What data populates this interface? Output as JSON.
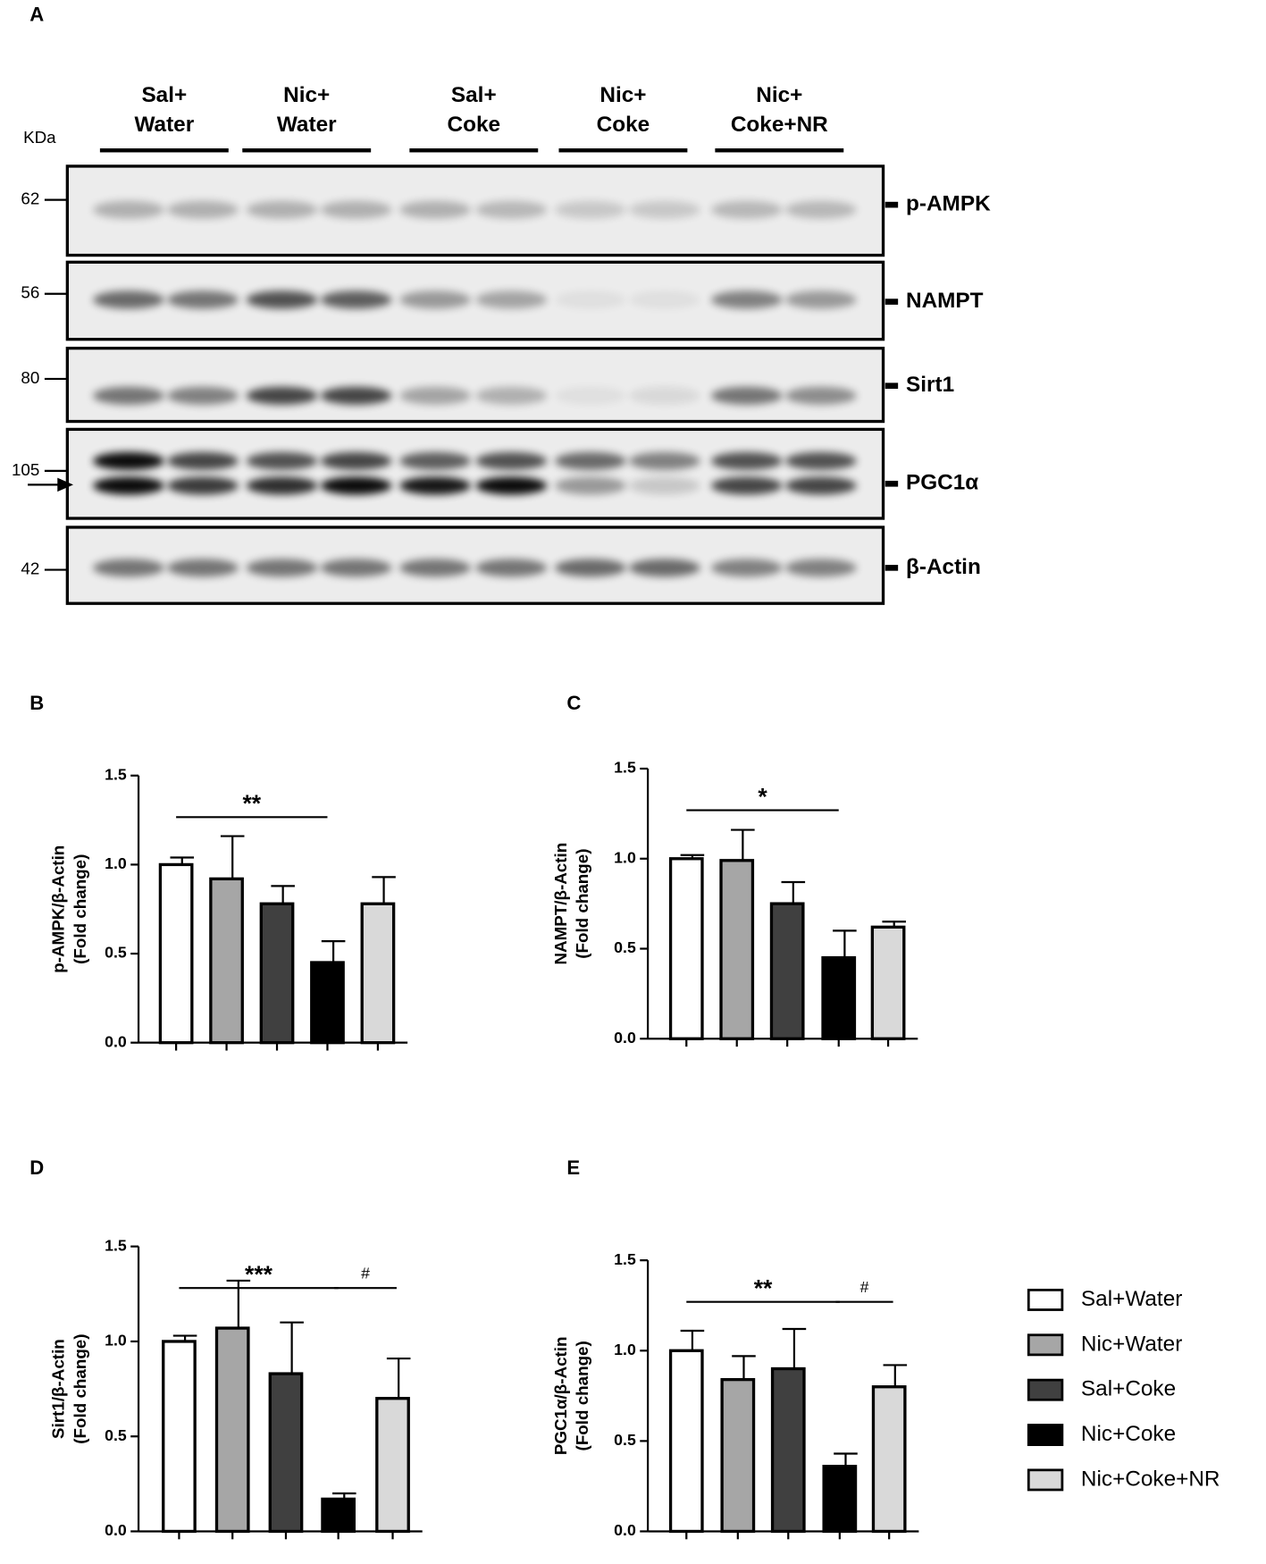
{
  "blot": {
    "panel": "A",
    "kda_label": "KDa",
    "groups": [
      [
        "Sal+",
        "Water"
      ],
      [
        "Nic+",
        "Water"
      ],
      [
        "Sal+",
        "Coke"
      ],
      [
        "Nic+",
        "Coke"
      ],
      [
        "Nic+",
        "Coke+NR"
      ]
    ],
    "markers": [
      "62",
      "56",
      "80",
      "105",
      "42"
    ],
    "proteins": [
      "p-AMPK",
      "NAMPT",
      "Sirt1",
      "PGC1α",
      "β-Actin"
    ]
  },
  "chart_data": [
    {
      "type": "bar",
      "panel": "B",
      "y_label": [
        "p-AMPK/β-Actin",
        "(Fold change)"
      ],
      "values": [
        1.0,
        0.92,
        0.78,
        0.45,
        0.78
      ],
      "errors": [
        0.04,
        0.24,
        0.1,
        0.12,
        0.15
      ],
      "colors": [
        "#ffffff",
        "#a6a6a6",
        "#404040",
        "#000000",
        "#d9d9d9"
      ],
      "ylim": [
        0,
        1.5
      ],
      "yticks": [
        {
          "value": 0,
          "label": "0.0"
        },
        {
          "value": 0.5,
          "label": "0.5"
        },
        {
          "value": 1,
          "label": "1.0"
        },
        {
          "value": 1.5,
          "label": "1.5"
        }
      ],
      "annotations": [
        "**"
      ]
    },
    {
      "type": "bar",
      "panel": "C",
      "y_label": [
        "NAMPT/β-Actin",
        "(Fold change)"
      ],
      "values": [
        1.0,
        0.99,
        0.75,
        0.45,
        0.62
      ],
      "errors": [
        0.02,
        0.17,
        0.12,
        0.15,
        0.03
      ],
      "colors": [
        "#ffffff",
        "#a6a6a6",
        "#404040",
        "#000000",
        "#d9d9d9"
      ],
      "ylim": [
        0,
        1.5
      ],
      "yticks": [
        {
          "value": 0,
          "label": "0.0"
        },
        {
          "value": 0.5,
          "label": "0.5"
        },
        {
          "value": 1,
          "label": "1.0"
        },
        {
          "value": 1.5,
          "label": "1.5"
        }
      ],
      "annotations": [
        "*"
      ]
    },
    {
      "type": "bar",
      "panel": "D",
      "y_label": [
        "Sirt1/β-Actin",
        "(Fold change)"
      ],
      "values": [
        1.0,
        1.07,
        0.83,
        0.17,
        0.7
      ],
      "errors": [
        0.03,
        0.25,
        0.27,
        0.03,
        0.21
      ],
      "colors": [
        "#ffffff",
        "#a6a6a6",
        "#404040",
        "#000000",
        "#d9d9d9"
      ],
      "ylim": [
        0,
        1.5
      ],
      "yticks": [
        {
          "value": 0,
          "label": "0.0"
        },
        {
          "value": 0.5,
          "label": "0.5"
        },
        {
          "value": 1,
          "label": "1.0"
        },
        {
          "value": 1.5,
          "label": "1.5"
        }
      ],
      "annotations": [
        "***",
        "#"
      ]
    },
    {
      "type": "bar",
      "panel": "E",
      "y_label": [
        "PGC1α/β-Actin",
        "(Fold change)"
      ],
      "values": [
        1.0,
        0.84,
        0.9,
        0.36,
        0.8
      ],
      "errors": [
        0.11,
        0.13,
        0.22,
        0.07,
        0.12
      ],
      "colors": [
        "#ffffff",
        "#a6a6a6",
        "#404040",
        "#000000",
        "#d9d9d9"
      ],
      "ylim": [
        0,
        1.5
      ],
      "yticks": [
        {
          "value": 0,
          "label": "0.0"
        },
        {
          "value": 0.5,
          "label": "0.5"
        },
        {
          "value": 1,
          "label": "1.0"
        },
        {
          "value": 1.5,
          "label": "1.5"
        }
      ],
      "annotations": [
        "**",
        "#"
      ]
    }
  ],
  "legend": {
    "names": [
      "Sal+Water",
      "Nic+Water",
      "Sal+Coke",
      "Nic+Coke",
      "Nic+Coke+NR"
    ],
    "colors": [
      "#ffffff",
      "#a6a6a6",
      "#404040",
      "#000000",
      "#d9d9d9"
    ]
  }
}
